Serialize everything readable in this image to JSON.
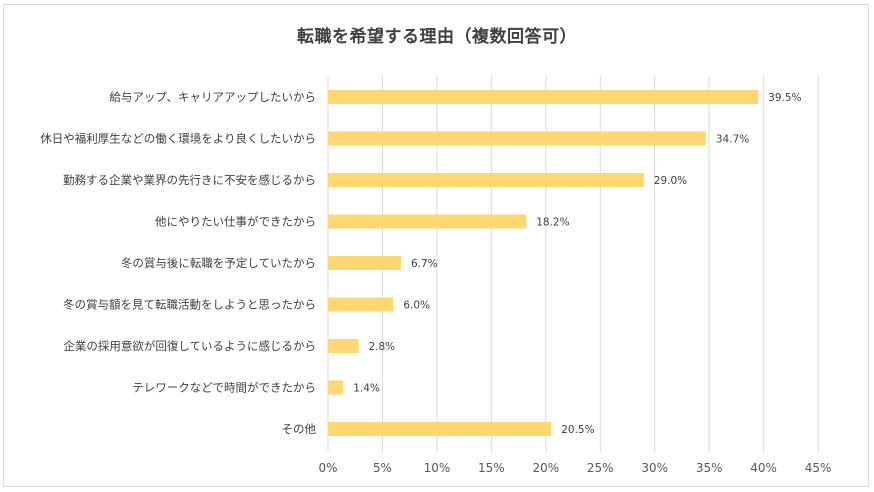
{
  "chart_data": {
    "type": "bar",
    "orientation": "horizontal",
    "title": "転職を希望する理由（複数回答可）",
    "categories": [
      "給与アップ、キャリアアップしたいから",
      "休日や福利厚生などの働く環境をより良くしたいから",
      "勤務する企業や業界の先行きに不安を感じるから",
      "他にやりたい仕事ができたから",
      "冬の賞与後に転職を予定していたから",
      "冬の賞与額を見て転職活動をしようと思ったから",
      "企業の採用意欲が回復しているように感じるから",
      "テレワークなどで時間ができたから",
      "その他"
    ],
    "values": [
      39.5,
      34.7,
      29.0,
      18.2,
      6.7,
      6.0,
      2.8,
      1.4,
      20.5
    ],
    "value_labels": [
      "39.5%",
      "34.7%",
      "29.0%",
      "18.2%",
      "6.7%",
      "6.0%",
      "2.8%",
      "1.4%",
      "20.5%"
    ],
    "xlim": [
      0,
      45
    ],
    "x_ticks": [
      "0%",
      "5%",
      "10%",
      "15%",
      "20%",
      "25%",
      "30%",
      "35%",
      "40%",
      "45%"
    ],
    "grid": "vertical",
    "legend": "none",
    "colors": {
      "bar": "#FFD772",
      "grid": "#d9d9d9",
      "text": "#404040"
    }
  }
}
